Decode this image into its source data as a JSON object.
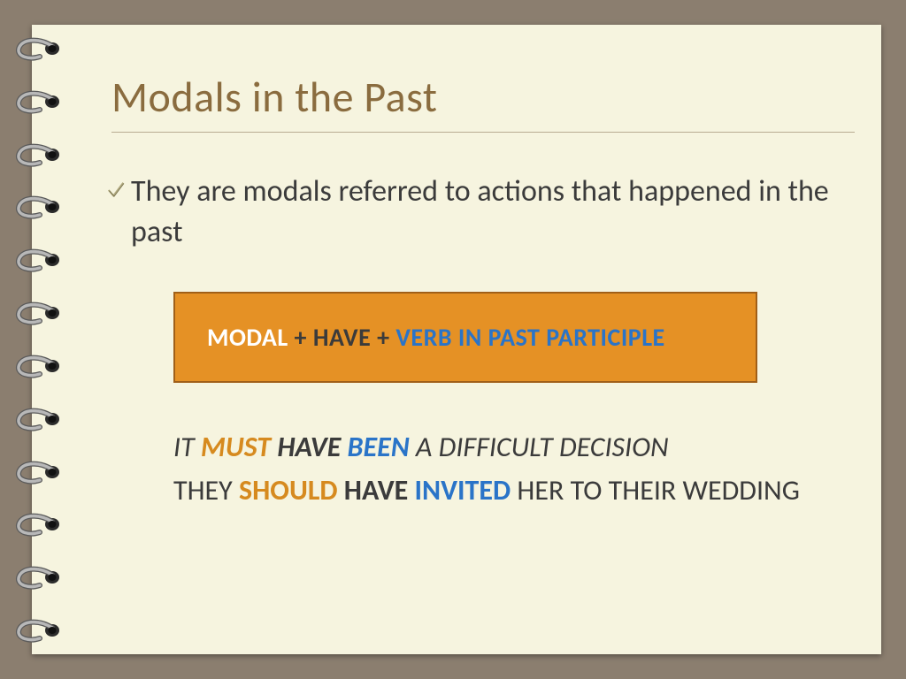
{
  "slide": {
    "title": "Modals in the Past",
    "body_line": "They are modals referred to actions that happened in the past",
    "formula": {
      "part_modal": "MODAL",
      "plus1": " + ",
      "part_have": "HAVE",
      "plus2": " + ",
      "part_vpp": "VERB IN PAST PARTICIPLE"
    },
    "example1": {
      "pre": "IT ",
      "modal": "MUST",
      "sp1": " ",
      "have": "HAVE",
      "sp2": " ",
      "verb": "BEEN",
      "rest": " A DIFFICULT DECISION"
    },
    "example2": {
      "pre": "THEY ",
      "modal": "SHOULD",
      "sp1": " ",
      "have": "HAVE",
      "sp2": " ",
      "verb": "INVITED",
      "rest": " HER TO THEIR WEDDING"
    }
  },
  "style": {
    "background_color": "#8b7e6f",
    "slide_background": "#f6f4df",
    "title_color": "#8a6c3f",
    "title_fontsize": 48,
    "body_color": "#3b3b3b",
    "body_fontsize": 34,
    "formula_box": {
      "background": "#e59125",
      "border_color": "#a05f18",
      "fontsize": 28,
      "text_white": "#ffffff",
      "text_black": "#3b3b3b",
      "text_blue": "#2a74c8"
    },
    "examples_fontsize": 32,
    "highlight_orange": "#d68a1f",
    "highlight_blue": "#2a74c8",
    "rule_color": "#b8ab92",
    "ring_count": 12,
    "ring_metal": "#b8b8b8",
    "ring_shadow": "#5a5a5a",
    "hole_color": "#2b2b2b"
  }
}
